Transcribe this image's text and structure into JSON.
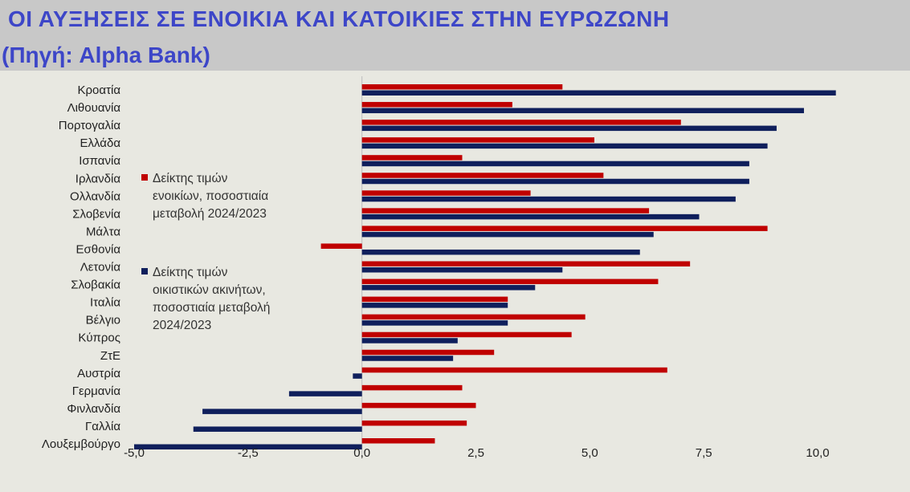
{
  "header": {
    "title": "ΟΙ ΑΥΞΗΣΕΙΣ ΣΕ ΕΝΟΙΚΙΑ ΚΑΙ ΚΑΤΟΙΚΙΕΣ ΣΤΗΝ ΕΥΡΩΖΩΝΗ",
    "subtitle": "(Πηγή: Alpha Bank)"
  },
  "legend": {
    "rent": [
      "Δείκτης τιμών",
      "ενοικίων, ποσοστιαία",
      "μεταβολή 2024/2023"
    ],
    "house": [
      "Δείκτης τιμών",
      "οικιστικών ακινήτων,",
      "ποσοστιαία μεταβολή",
      "2024/2023"
    ]
  },
  "chart_data": {
    "type": "bar",
    "orientation": "horizontal",
    "categories": [
      "Κροατία",
      "Λιθουανία",
      "Πορτογαλία",
      "Ελλάδα",
      "Ισπανία",
      "Ιρλανδία",
      "Ολλανδία",
      "Σλοβενία",
      "Μάλτα",
      "Εσθονία",
      "Λετονία",
      "Σλοβακία",
      "Ιταλία",
      "Βέλγιο",
      "Κύπρος",
      "ΖτΕ",
      "Αυστρία",
      "Γερμανία",
      "Φινλανδία",
      "Γαλλία",
      "Λουξεμβούργο"
    ],
    "series": [
      {
        "name": "Δείκτης τιμών ενοικίων, ποσοστιαία μεταβολή 2024/2023",
        "color": "#c00000",
        "values": [
          4.4,
          3.3,
          7.0,
          5.1,
          2.2,
          5.3,
          3.7,
          6.3,
          8.9,
          -0.9,
          7.2,
          6.5,
          3.2,
          4.9,
          4.6,
          2.9,
          6.7,
          2.2,
          2.5,
          2.3,
          1.6
        ]
      },
      {
        "name": "Δείκτης τιμών οικιστικών ακινήτων, ποσοστιαία μεταβολή 2024/2023",
        "color": "#0f1f5c",
        "values": [
          10.4,
          9.7,
          9.1,
          8.9,
          8.5,
          8.5,
          8.2,
          7.4,
          6.4,
          6.1,
          4.4,
          3.8,
          3.2,
          3.2,
          2.1,
          2.0,
          -0.2,
          -1.6,
          -3.5,
          -3.7,
          -5.0
        ]
      }
    ],
    "xlim": [
      -5.0,
      10.0
    ],
    "xticks": [
      "-5,0",
      "-2,5",
      "0,0",
      "2,5",
      "5,0",
      "7,5",
      "10,0"
    ],
    "xtick_values": [
      -5.0,
      -2.5,
      0.0,
      2.5,
      5.0,
      7.5,
      10.0
    ],
    "grid": false
  }
}
